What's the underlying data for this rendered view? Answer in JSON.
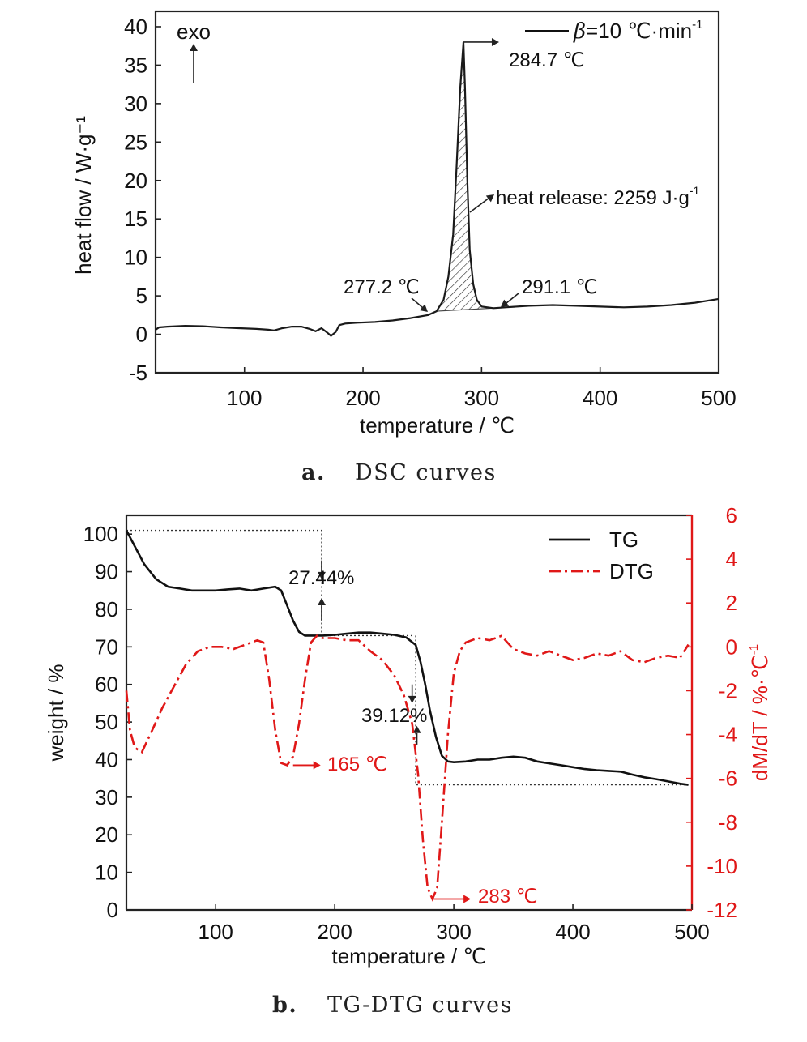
{
  "chart_data": [
    {
      "type": "line",
      "caption_letter": "a.",
      "caption_text": "DSC curves",
      "xlabel": "temperature / ℃",
      "ylabel": "heat flow / W·g⁻¹",
      "xlim": [
        25,
        500
      ],
      "ylim": [
        -5,
        42
      ],
      "xticks": [
        100,
        200,
        300,
        400,
        500
      ],
      "yticks": [
        -5,
        0,
        5,
        10,
        15,
        20,
        25,
        30,
        35,
        40
      ],
      "exo_label": "exo",
      "legend": {
        "placement": "top-right",
        "symbol": "β",
        "text": "=10 ℃·min",
        "sup": "-1"
      },
      "series": [
        {
          "x": [
            25,
            28,
            35,
            50,
            65,
            80,
            95,
            110,
            120,
            125,
            132,
            140,
            148,
            155,
            160,
            165,
            170,
            173,
            177,
            180,
            185,
            195,
            210,
            225,
            240,
            255,
            262,
            268,
            272,
            276,
            279,
            282,
            284.7,
            286,
            288,
            290,
            293,
            296,
            300,
            310,
            320,
            340,
            360,
            380,
            400,
            420,
            440,
            460,
            480,
            500
          ],
          "y": [
            0.6,
            0.9,
            1.0,
            1.1,
            1.05,
            0.9,
            0.8,
            0.7,
            0.6,
            0.5,
            0.8,
            1.0,
            1.0,
            0.7,
            0.4,
            0.8,
            0.2,
            -0.2,
            0.3,
            1.2,
            1.4,
            1.5,
            1.6,
            1.8,
            2.1,
            2.5,
            3.0,
            4.5,
            7.5,
            13.0,
            22.0,
            32.0,
            38.0,
            32.0,
            20.0,
            11.0,
            6.5,
            4.5,
            3.6,
            3.4,
            3.5,
            3.7,
            3.8,
            3.7,
            3.6,
            3.5,
            3.6,
            3.8,
            4.1,
            4.6
          ]
        }
      ],
      "shaded_range": [
        262,
        310
      ],
      "annotations": {
        "peak": "284.7 ℃",
        "onset": "277.2 ℃",
        "endset": "291.1 ℃",
        "heat_text": "heat release: 2259 J·g",
        "heat_sup": "-1"
      }
    },
    {
      "type": "line",
      "caption_letter": "b.",
      "caption_text": "TG-DTG curves",
      "xlabel": "temperature / ℃",
      "ylabel": "weight / %",
      "y2label_prefix": "dM/dT / %·℃",
      "y2label_sup": "-1",
      "xlim": [
        25,
        500
      ],
      "ylim": [
        0,
        105
      ],
      "y2lim": [
        -12,
        6
      ],
      "xticks": [
        100,
        200,
        300,
        400,
        500
      ],
      "yticks": [
        0,
        10,
        20,
        30,
        40,
        50,
        60,
        70,
        80,
        90,
        100
      ],
      "y2ticks": [
        -12,
        -10,
        -8,
        -6,
        -4,
        -2,
        0,
        2,
        4,
        6
      ],
      "legend": {
        "placement": "top-right",
        "entries": [
          "TG",
          "DTG"
        ]
      },
      "series": [
        {
          "name": "TG",
          "x": [
            25,
            30,
            40,
            50,
            60,
            70,
            80,
            90,
            100,
            110,
            120,
            130,
            140,
            150,
            155,
            160,
            165,
            170,
            175,
            180,
            190,
            200,
            210,
            220,
            230,
            240,
            250,
            260,
            268,
            272,
            276,
            280,
            285,
            290,
            295,
            300,
            310,
            320,
            330,
            340,
            350,
            360,
            370,
            380,
            390,
            400,
            410,
            420,
            430,
            440,
            450,
            460,
            470,
            480,
            490,
            497
          ],
          "y": [
            101,
            98,
            92,
            88,
            86,
            85.5,
            85,
            85,
            85,
            85.3,
            85.5,
            85,
            85.5,
            86,
            85,
            81,
            77,
            74,
            73,
            73,
            73,
            73.2,
            73.5,
            73.8,
            73.8,
            73.5,
            73.2,
            72.5,
            70.5,
            66,
            60,
            53,
            46,
            41,
            39.5,
            39.3,
            39.5,
            40,
            40,
            40.5,
            40.8,
            40.5,
            39.5,
            39,
            38.5,
            38,
            37.5,
            37.2,
            37,
            36.8,
            36,
            35.3,
            34.8,
            34.2,
            33.6,
            33.3
          ]
        },
        {
          "name": "DTG",
          "x": [
            25,
            28,
            32,
            38,
            45,
            55,
            65,
            75,
            85,
            95,
            105,
            115,
            125,
            135,
            140,
            145,
            150,
            155,
            160,
            165,
            170,
            175,
            180,
            185,
            190,
            200,
            210,
            220,
            230,
            240,
            250,
            258,
            265,
            270,
            274,
            278,
            282,
            286,
            290,
            295,
            300,
            305,
            310,
            320,
            330,
            340,
            350,
            360,
            370,
            380,
            390,
            400,
            410,
            420,
            430,
            440,
            450,
            460,
            470,
            480,
            490,
            497
          ],
          "y": [
            -2.0,
            -3.8,
            -4.6,
            -4.8,
            -4.0,
            -2.8,
            -1.8,
            -0.8,
            -0.2,
            0.0,
            0.0,
            -0.1,
            0.1,
            0.3,
            0.2,
            -1.5,
            -3.8,
            -5.3,
            -5.4,
            -5.0,
            -3.5,
            -1.5,
            0.2,
            0.5,
            0.4,
            0.4,
            0.3,
            0.3,
            -0.2,
            -0.6,
            -1.3,
            -2.2,
            -3.5,
            -5.8,
            -8.8,
            -11.0,
            -11.5,
            -11.0,
            -8.0,
            -4.0,
            -1.2,
            -0.2,
            0.2,
            0.4,
            0.3,
            0.5,
            -0.1,
            -0.3,
            -0.4,
            -0.2,
            -0.4,
            -0.6,
            -0.5,
            -0.3,
            -0.4,
            -0.2,
            -0.6,
            -0.7,
            -0.5,
            -0.4,
            -0.5,
            0.1
          ]
        }
      ],
      "annotations": {
        "loss1": "27.44%",
        "loss2": "39.12%",
        "dtg_peak1": "165 ℃",
        "dtg_peak2": "283 ℃"
      }
    }
  ]
}
